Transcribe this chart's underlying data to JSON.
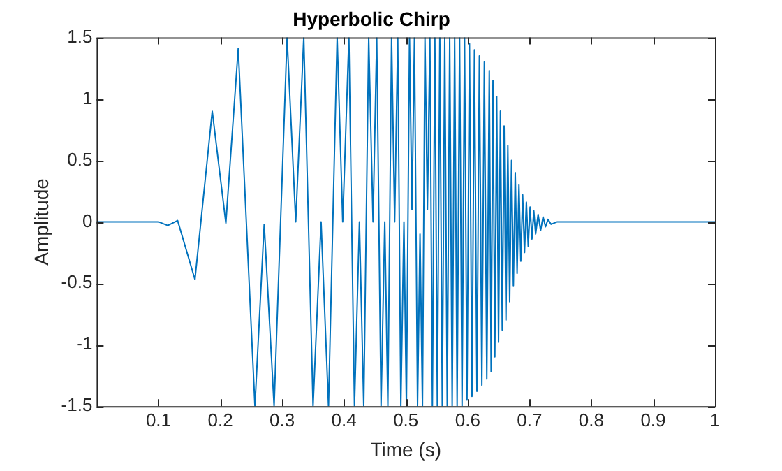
{
  "chart_data": {
    "type": "line",
    "title": "Hyperbolic Chirp",
    "xlabel": "Time (s)",
    "ylabel": "Amplitude",
    "xlim": [
      0,
      1
    ],
    "xticks": [
      0.1,
      0.2,
      0.3,
      0.4,
      0.5,
      0.6,
      0.7,
      0.8,
      0.9,
      1
    ],
    "ylim": [
      -1.5,
      1.5
    ],
    "yticks": [
      -1.5,
      -1,
      -0.5,
      0,
      0.5,
      1,
      1.5
    ],
    "grid": false,
    "legend": false,
    "marker": "none",
    "line_style": "solid",
    "series": [
      {
        "color": "#0072bd",
        "x": [
          0,
          0.1,
          0.115,
          0.131,
          0.159,
          0.187,
          0.209,
          0.229,
          0.256,
          0.271,
          0.287,
          0.308,
          0.322,
          0.335,
          0.35,
          0.363,
          0.375,
          0.389,
          0.398,
          0.408,
          0.417,
          0.425,
          0.432,
          0.44,
          0.447,
          0.453,
          0.46,
          0.466,
          0.471,
          0.477,
          0.482,
          0.487,
          0.492,
          0.497,
          0.501,
          0.506,
          0.51,
          0.514,
          0.519,
          0.523,
          0.527,
          0.531,
          0.535,
          0.539,
          0.543,
          0.547,
          0.551,
          0.555,
          0.559,
          0.563,
          0.567,
          0.571,
          0.575,
          0.579,
          0.583,
          0.587,
          0.591,
          0.595,
          0.599,
          0.603,
          0.607,
          0.611,
          0.615,
          0.619,
          0.623,
          0.627,
          0.631,
          0.635,
          0.638,
          0.641,
          0.644,
          0.647,
          0.65,
          0.653,
          0.656,
          0.659,
          0.662,
          0.665,
          0.668,
          0.671,
          0.674,
          0.677,
          0.68,
          0.683,
          0.686,
          0.689,
          0.692,
          0.695,
          0.698,
          0.701,
          0.704,
          0.707,
          0.71,
          0.714,
          0.718,
          0.722,
          0.726,
          0.73,
          0.735,
          0.745,
          1
        ],
        "values": [
          0,
          0,
          -0.03,
          0.01,
          -0.47,
          0.9,
          -0.01,
          1.41,
          -1.5,
          -0.02,
          -1.5,
          1.5,
          0,
          1.5,
          -1.5,
          0,
          -1.5,
          1.5,
          0,
          1.5,
          -1.5,
          0,
          -1.5,
          1.5,
          0,
          1.5,
          -1.5,
          0,
          -1.5,
          1.5,
          0,
          1.5,
          -1.5,
          0,
          -1.5,
          1.5,
          0.1,
          1.5,
          -1.5,
          -0.1,
          -1.5,
          1.5,
          0.1,
          1.5,
          -1.5,
          1.5,
          -1.5,
          1.5,
          -1.5,
          1.5,
          -1.5,
          1.5,
          -1.5,
          1.5,
          -1.5,
          1.5,
          -1.5,
          1.5,
          -1.45,
          1.45,
          -1.42,
          1.4,
          -1.38,
          1.35,
          -1.33,
          1.3,
          -1.28,
          1.23,
          -1.22,
          1.15,
          -1.1,
          1.02,
          -0.98,
          0.9,
          -0.88,
          0.78,
          -0.8,
          0.62,
          -0.65,
          0.5,
          -0.52,
          0.4,
          -0.42,
          0.3,
          -0.32,
          0.22,
          -0.25,
          0.16,
          -0.2,
          0.12,
          -0.14,
          0.09,
          -0.1,
          0.06,
          -0.07,
          0.04,
          -0.04,
          0.02,
          -0.02,
          0,
          0
        ]
      }
    ]
  }
}
